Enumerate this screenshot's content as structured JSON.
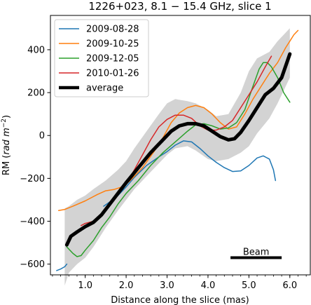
{
  "chart_data": {
    "type": "line",
    "title": "1226+023, 8.1 − 15.4 GHz, slice 1",
    "xlabel": "Distance along the slice (mas)",
    "ylabel_main": "RM (",
    "ylabel_unit": "rad m",
    "ylabel_exp": "−2",
    "ylabel_close": ")",
    "xlim": [
      0.15,
      6.5
    ],
    "ylim": [
      -650,
      560
    ],
    "xticks": [
      1.0,
      2.0,
      3.0,
      4.0,
      5.0,
      6.0
    ],
    "xtick_labels": [
      "1.0",
      "2.0",
      "3.0",
      "4.0",
      "5.0",
      "6.0"
    ],
    "yticks": [
      -600,
      -400,
      -200,
      0,
      200,
      400
    ],
    "ytick_labels": [
      "−600",
      "−400",
      "−200",
      "0",
      "200",
      "400"
    ],
    "x_minor_step": 0.2,
    "legend_position": "top-left",
    "beam": {
      "label": "Beam",
      "x": [
        4.55,
        5.8
      ],
      "y": -570
    },
    "band": {
      "x": [
        0.5,
        0.6,
        0.8,
        1.0,
        1.2,
        1.5,
        1.8,
        2.0,
        2.2,
        2.5,
        2.8,
        3.0,
        3.2,
        3.5,
        3.7,
        4.0,
        4.2,
        4.5,
        4.8,
        5.0,
        5.2,
        5.5,
        5.7,
        6.0
      ],
      "upper": [
        -340,
        -330,
        -300,
        -280,
        -250,
        -210,
        -160,
        -120,
        -60,
        20,
        100,
        150,
        170,
        160,
        150,
        120,
        90,
        100,
        200,
        300,
        360,
        390,
        440,
        500
      ],
      "lower": [
        -700,
        -640,
        -600,
        -570,
        -520,
        -430,
        -350,
        -300,
        -250,
        -190,
        -130,
        -90,
        -60,
        -50,
        -70,
        -110,
        -120,
        -110,
        -80,
        -50,
        10,
        80,
        150,
        270
      ]
    },
    "series": [
      {
        "name": "2009-08-28",
        "color": "#1f77b4",
        "width": 1.5,
        "segments": [
          [
            [
              0.3,
              -630
            ],
            [
              0.4,
              -623
            ],
            [
              0.5,
              -612
            ],
            [
              0.55,
              -600
            ]
          ],
          [
            [
              1.45,
              -330
            ],
            [
              1.6,
              -310
            ],
            [
              1.8,
              -280
            ],
            [
              2.0,
              -240
            ],
            [
              2.2,
              -195
            ],
            [
              2.5,
              -140
            ],
            [
              2.8,
              -100
            ],
            [
              3.0,
              -75
            ],
            [
              3.2,
              -45
            ],
            [
              3.4,
              -25
            ],
            [
              3.6,
              -30
            ],
            [
              3.8,
              -60
            ],
            [
              4.0,
              -95
            ],
            [
              4.2,
              -125
            ],
            [
              4.4,
              -150
            ],
            [
              4.6,
              -168
            ],
            [
              4.8,
              -165
            ],
            [
              5.0,
              -140
            ],
            [
              5.2,
              -105
            ],
            [
              5.35,
              -95
            ],
            [
              5.5,
              -110
            ],
            [
              5.6,
              -160
            ],
            [
              5.65,
              -210
            ]
          ]
        ]
      },
      {
        "name": "2009-10-25",
        "color": "#ff7f0e",
        "width": 1.5,
        "segments": [
          [
            [
              0.35,
              -350
            ],
            [
              0.5,
              -345
            ],
            [
              0.7,
              -330
            ],
            [
              1.0,
              -305
            ],
            [
              1.3,
              -275
            ],
            [
              1.5,
              -258
            ],
            [
              1.7,
              -252
            ],
            [
              1.9,
              -240
            ],
            [
              2.1,
              -210
            ],
            [
              2.4,
              -150
            ],
            [
              2.7,
              -70
            ],
            [
              2.9,
              -10
            ],
            [
              3.1,
              60
            ],
            [
              3.3,
              105
            ],
            [
              3.5,
              130
            ],
            [
              3.7,
              140
            ],
            [
              3.9,
              130
            ],
            [
              4.1,
              100
            ],
            [
              4.3,
              60
            ],
            [
              4.5,
              30
            ],
            [
              4.7,
              40
            ],
            [
              4.9,
              100
            ],
            [
              5.1,
              170
            ],
            [
              5.3,
              230
            ],
            [
              5.5,
              290
            ],
            [
              5.7,
              340
            ],
            [
              5.9,
              410
            ],
            [
              6.0,
              440
            ],
            [
              6.1,
              470
            ],
            [
              6.2,
              490
            ]
          ]
        ]
      },
      {
        "name": "2009-12-05",
        "color": "#2ca02c",
        "width": 1.5,
        "segments": [
          [
            [
              0.55,
              -520
            ],
            [
              0.7,
              -550
            ],
            [
              0.8,
              -565
            ],
            [
              0.9,
              -560
            ],
            [
              1.0,
              -535
            ],
            [
              1.2,
              -490
            ],
            [
              1.4,
              -430
            ],
            [
              1.6,
              -380
            ],
            [
              1.8,
              -320
            ],
            [
              2.0,
              -270
            ],
            [
              2.3,
              -210
            ],
            [
              2.6,
              -140
            ],
            [
              2.9,
              -80
            ],
            [
              3.2,
              -30
            ],
            [
              3.5,
              20
            ],
            [
              3.7,
              50
            ],
            [
              3.9,
              55
            ],
            [
              4.1,
              45
            ],
            [
              4.3,
              30
            ],
            [
              4.5,
              35
            ],
            [
              4.7,
              60
            ],
            [
              4.9,
              120
            ],
            [
              5.1,
              230
            ],
            [
              5.25,
              310
            ],
            [
              5.35,
              340
            ],
            [
              5.45,
              340
            ],
            [
              5.55,
              320
            ],
            [
              5.7,
              270
            ],
            [
              5.85,
              200
            ],
            [
              6.0,
              155
            ]
          ]
        ]
      },
      {
        "name": "2010-01-26",
        "color": "#d62728",
        "width": 1.5,
        "segments": [
          [
            [
              0.9,
              -420
            ],
            [
              1.0,
              -410
            ],
            [
              1.2,
              -400
            ],
            [
              1.4,
              -370
            ],
            [
              1.6,
              -320
            ],
            [
              1.8,
              -270
            ],
            [
              2.0,
              -225
            ],
            [
              2.2,
              -160
            ],
            [
              2.4,
              -90
            ],
            [
              2.6,
              -20
            ],
            [
              2.8,
              40
            ],
            [
              3.0,
              75
            ],
            [
              3.2,
              95
            ],
            [
              3.4,
              95
            ],
            [
              3.6,
              80
            ],
            [
              3.8,
              45
            ],
            [
              4.0,
              25
            ],
            [
              4.2,
              25
            ],
            [
              4.4,
              40
            ],
            [
              4.6,
              70
            ],
            [
              4.8,
              130
            ],
            [
              5.0,
              190
            ],
            [
              5.2,
              250
            ],
            [
              5.4,
              320
            ],
            [
              5.55,
              370
            ]
          ]
        ]
      },
      {
        "name": "average",
        "color": "#000000",
        "width": 5,
        "segments": [
          [
            [
              0.55,
              -510
            ],
            [
              0.65,
              -470
            ],
            [
              0.8,
              -450
            ],
            [
              1.0,
              -425
            ],
            [
              1.2,
              -405
            ],
            [
              1.4,
              -370
            ],
            [
              1.6,
              -320
            ],
            [
              1.8,
              -270
            ],
            [
              2.0,
              -220
            ],
            [
              2.3,
              -150
            ],
            [
              2.6,
              -80
            ],
            [
              2.9,
              -20
            ],
            [
              3.1,
              20
            ],
            [
              3.3,
              45
            ],
            [
              3.5,
              55
            ],
            [
              3.7,
              55
            ],
            [
              3.9,
              45
            ],
            [
              4.1,
              20
            ],
            [
              4.3,
              -5
            ],
            [
              4.5,
              -20
            ],
            [
              4.65,
              -15
            ],
            [
              4.8,
              15
            ],
            [
              5.0,
              70
            ],
            [
              5.2,
              130
            ],
            [
              5.4,
              190
            ],
            [
              5.6,
              220
            ],
            [
              5.8,
              270
            ],
            [
              6.0,
              380
            ]
          ]
        ]
      }
    ]
  }
}
